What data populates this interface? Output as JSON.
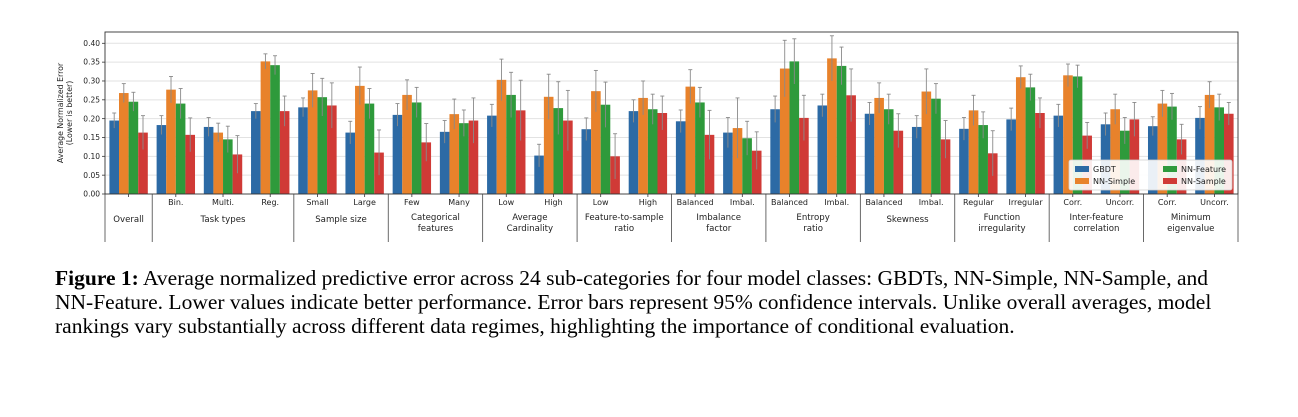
{
  "chart_data": {
    "type": "bar",
    "ylabel": "Average Normalized Error\n(Lower is better)",
    "ylim": [
      0,
      0.43
    ],
    "yticks": [
      "0.00",
      "0.05",
      "0.10",
      "0.15",
      "0.20",
      "0.25",
      "0.30",
      "0.35",
      "0.40"
    ],
    "grid": true,
    "legend_position": "lower-right",
    "colors": {
      "GBDT": "#2c6aa5",
      "NN-Simple": "#e8822b",
      "NN-Feature": "#2e9a3b",
      "NN-Sample": "#d03a36"
    },
    "series_order": [
      "GBDT",
      "NN-Simple",
      "NN-Feature",
      "NN-Sample"
    ],
    "legend": [
      {
        "name": "GBDT",
        "color": "#2c6aa5"
      },
      {
        "name": "NN-Feature",
        "color": "#2e9a3b"
      },
      {
        "name": "NN-Simple",
        "color": "#e8822b"
      },
      {
        "name": "NN-Sample",
        "color": "#d03a36"
      }
    ],
    "categories": [
      "Overall",
      "Bin.",
      "Multi.",
      "Reg.",
      "Small",
      "Large",
      "Few",
      "Many",
      "Low",
      "High",
      "Low",
      "High",
      "Balanced",
      "Imbal.",
      "Balanced",
      "Imbal.",
      "Balanced",
      "Imbal.",
      "Regular",
      "Irregular",
      "Corr.",
      "Uncorr.",
      "Corr.",
      "Uncorr."
    ],
    "groups": [
      {
        "label": "Overall",
        "count": 1
      },
      {
        "label": "Task types",
        "count": 3
      },
      {
        "label": "Sample size",
        "count": 2
      },
      {
        "label": "Categorical\nfeatures",
        "count": 2
      },
      {
        "label": "Average\nCardinality",
        "count": 2
      },
      {
        "label": "Feature-to-sample\nratio",
        "count": 2
      },
      {
        "label": "Imbalance\nfactor",
        "count": 2
      },
      {
        "label": "Entropy\nratio",
        "count": 2
      },
      {
        "label": "Skewness",
        "count": 2
      },
      {
        "label": "Function\nirregularity",
        "count": 2
      },
      {
        "label": "Inter-feature\ncorrelation",
        "count": 2
      },
      {
        "label": "Minimum\neigenvalue",
        "count": 2
      }
    ],
    "series": [
      {
        "name": "GBDT",
        "values": [
          0.195,
          0.183,
          0.178,
          0.22,
          0.23,
          0.163,
          0.21,
          0.165,
          0.208,
          0.102,
          0.172,
          0.22,
          0.193,
          0.163,
          0.225,
          0.235,
          0.213,
          0.178,
          0.173,
          0.198,
          0.208,
          0.185,
          0.18,
          0.202
        ],
        "err": [
          0.02,
          0.025,
          0.025,
          0.02,
          0.025,
          0.03,
          0.03,
          0.03,
          0.03,
          0.03,
          0.03,
          0.03,
          0.03,
          0.04,
          0.035,
          0.03,
          0.03,
          0.03,
          0.03,
          0.03,
          0.03,
          0.03,
          0.025,
          0.03
        ]
      },
      {
        "name": "NN-Simple",
        "values": [
          0.268,
          0.277,
          0.163,
          0.352,
          0.275,
          0.287,
          0.263,
          0.212,
          0.303,
          0.258,
          0.273,
          0.255,
          0.285,
          0.175,
          0.333,
          0.36,
          0.255,
          0.272,
          0.222,
          0.31,
          0.315,
          0.225,
          0.24,
          0.263
        ],
        "err": [
          0.025,
          0.035,
          0.025,
          0.02,
          0.045,
          0.05,
          0.04,
          0.04,
          0.055,
          0.06,
          0.055,
          0.045,
          0.045,
          0.08,
          0.075,
          0.06,
          0.04,
          0.06,
          0.04,
          0.03,
          0.03,
          0.04,
          0.035,
          0.035
        ]
      },
      {
        "name": "NN-Feature",
        "values": [
          0.245,
          0.24,
          0.145,
          0.342,
          0.257,
          0.24,
          0.243,
          0.188,
          0.263,
          0.228,
          0.237,
          0.225,
          0.243,
          0.148,
          0.352,
          0.34,
          0.225,
          0.253,
          0.183,
          0.283,
          0.312,
          0.168,
          0.232,
          0.23
        ],
        "err": [
          0.025,
          0.04,
          0.035,
          0.025,
          0.05,
          0.04,
          0.04,
          0.035,
          0.06,
          0.07,
          0.06,
          0.04,
          0.04,
          0.045,
          0.06,
          0.05,
          0.04,
          0.04,
          0.035,
          0.035,
          0.03,
          0.035,
          0.035,
          0.035
        ]
      },
      {
        "name": "NN-Sample",
        "values": [
          0.163,
          0.157,
          0.105,
          0.22,
          0.235,
          0.11,
          0.137,
          0.195,
          0.222,
          0.195,
          0.1,
          0.215,
          0.157,
          0.115,
          0.202,
          0.262,
          0.168,
          0.145,
          0.108,
          0.215,
          0.155,
          0.198,
          0.145,
          0.213
        ],
        "err": [
          0.045,
          0.045,
          0.05,
          0.04,
          0.06,
          0.06,
          0.05,
          0.06,
          0.08,
          0.08,
          0.06,
          0.045,
          0.065,
          0.05,
          0.06,
          0.07,
          0.045,
          0.05,
          0.06,
          0.04,
          0.035,
          0.045,
          0.04,
          0.03
        ]
      }
    ]
  },
  "caption": {
    "label": "Figure 1:",
    "text": " Average normalized predictive error across 24 sub-categories for four model classes: GBDTs, NN-Simple, NN-Sample, and NN-Feature. Lower values indicate better performance. Error bars represent 95% confidence intervals. Unlike overall averages, model rankings vary substantially across different data regimes, highlighting the importance of conditional evaluation."
  }
}
